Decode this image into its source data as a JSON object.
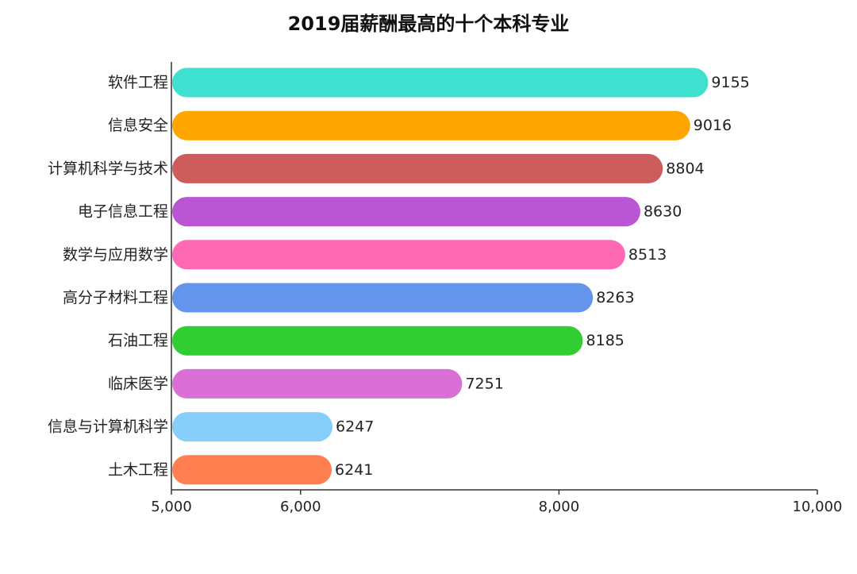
{
  "chart_data": {
    "type": "bar",
    "orientation": "horizontal",
    "title": "2019届薪酬最高的十个本科专业",
    "xlabel": "",
    "ylabel": "",
    "xlim": [
      5000,
      10000
    ],
    "x_ticks": [
      5000,
      6000,
      8000,
      10000
    ],
    "x_tick_labels": [
      "5,000",
      "6,000",
      "8,000",
      "10,000"
    ],
    "grid": false,
    "legend": "none",
    "categories": [
      "软件工程",
      "信息安全",
      "计算机科学与技术",
      "电子信息工程",
      "数学与应用数学",
      "高分子材料工程",
      "石油工程",
      "临床医学",
      "信息与计算机科学",
      "土木工程"
    ],
    "values": [
      9155,
      9016,
      8804,
      8630,
      8513,
      8263,
      8185,
      7251,
      6247,
      6241
    ],
    "value_labels": [
      "9155",
      "9016",
      "8804",
      "8630",
      "8513",
      "8263",
      "8185",
      "7251",
      "6247",
      "6241"
    ],
    "colors": [
      "#40E0D0",
      "#FFA500",
      "#CD5C5C",
      "#BA55D3",
      "#FF69B4",
      "#6495ED",
      "#32CD32",
      "#DA70D6",
      "#87CEFA",
      "#FF7F50"
    ]
  }
}
